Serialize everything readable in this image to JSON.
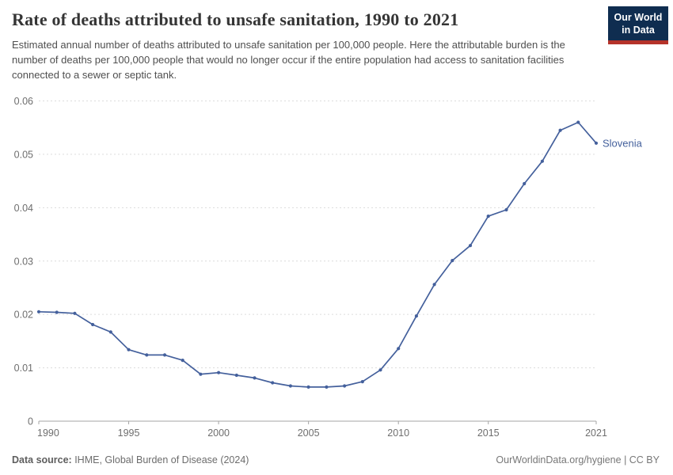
{
  "header": {
    "title": "Rate of deaths attributed to unsafe sanitation, 1990 to 2021",
    "subtitle": "Estimated annual number of deaths attributed to unsafe sanitation per 100,000 people. Here the attributable burden is the number of deaths per 100,000 people that would no longer occur if the entire population had access to sanitation facilities connected to a sewer or septic tank.",
    "logo": {
      "line1": "Our World",
      "line2": "in Data",
      "bg_color": "#0f2d50",
      "stripe_color": "#b5332a",
      "text_color": "#ffffff"
    }
  },
  "chart_data": {
    "type": "line",
    "title": "Rate of deaths attributed to unsafe sanitation, 1990 to 2021",
    "xlabel": "",
    "ylabel": "",
    "xlim": [
      1990,
      2021
    ],
    "ylim": [
      0,
      0.06
    ],
    "grid": "horizontal-dashed",
    "legend_position": "end-of-line-label",
    "x_ticks": [
      1990,
      1995,
      2000,
      2005,
      2010,
      2015,
      2021
    ],
    "y_ticks": [
      0,
      0.01,
      0.02,
      0.03,
      0.04,
      0.05,
      0.06
    ],
    "series": [
      {
        "name": "Slovenia",
        "color": "#44609c",
        "x": [
          1990,
          1991,
          1992,
          1993,
          1994,
          1995,
          1996,
          1997,
          1998,
          1999,
          2000,
          2001,
          2002,
          2003,
          2004,
          2005,
          2006,
          2007,
          2008,
          2009,
          2010,
          2011,
          2012,
          2013,
          2014,
          2015,
          2016,
          2017,
          2018,
          2019,
          2020,
          2021
        ],
        "values": [
          0.0205,
          0.0204,
          0.0202,
          0.0181,
          0.0167,
          0.0134,
          0.0124,
          0.0124,
          0.0114,
          0.0088,
          0.0091,
          0.0086,
          0.0081,
          0.0072,
          0.0066,
          0.0064,
          0.0064,
          0.0066,
          0.0074,
          0.0096,
          0.0136,
          0.0197,
          0.0256,
          0.0301,
          0.0329,
          0.0384,
          0.0396,
          0.0445,
          0.0487,
          0.0545,
          0.056,
          0.0521
        ]
      }
    ],
    "colors": {
      "gridline": "#dcdcdc",
      "axis_line": "#a5a5a5",
      "tick_label": "#6e6e6e"
    }
  },
  "footer": {
    "source_label": "Data source:",
    "source_text": " IHME, Global Burden of Disease (2024)",
    "credit": "OurWorldinData.org/hygiene | CC BY"
  }
}
